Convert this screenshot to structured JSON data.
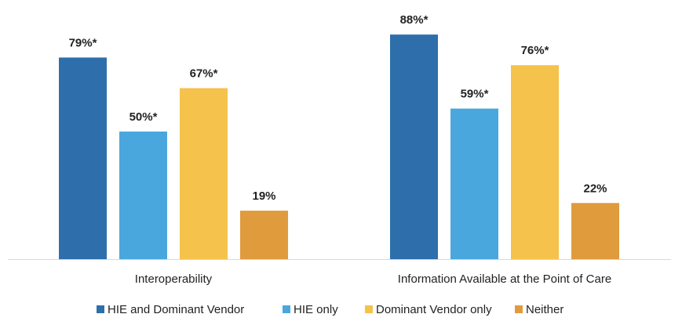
{
  "chart_data": {
    "type": "bar",
    "categories": [
      "Interoperability",
      "Information Available at the Point of Care"
    ],
    "series": [
      {
        "name": "HIE and Dominant Vendor",
        "values": [
          79,
          88
        ],
        "labels": [
          "79%*",
          "88%*"
        ],
        "color": "#2e6fab"
      },
      {
        "name": "HIE only",
        "values": [
          50,
          59
        ],
        "labels": [
          "50%*",
          "59%*"
        ],
        "color": "#4aa7de"
      },
      {
        "name": "Dominant Vendor only",
        "values": [
          67,
          76
        ],
        "labels": [
          "67%*",
          "76%*"
        ],
        "color": "#f5c24b"
      },
      {
        "name": "Neither",
        "values": [
          19,
          22
        ],
        "labels": [
          "19%",
          "22%"
        ],
        "color": "#e09b3d"
      }
    ],
    "ylim": [
      0,
      100
    ],
    "grid": false,
    "legend": "bottom"
  }
}
